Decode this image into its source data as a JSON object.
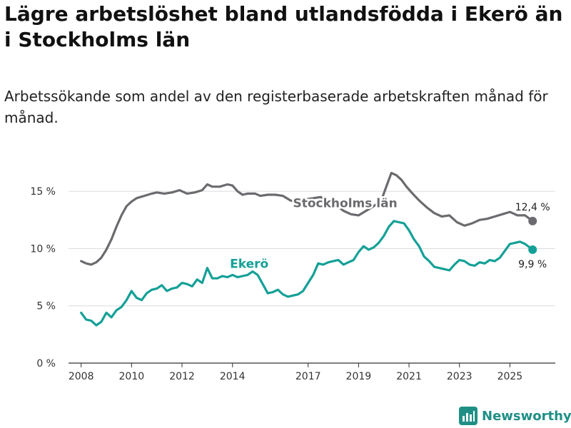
{
  "header": {
    "title": "Lägre arbetslöshet bland utlandsfödda i Ekerö än i Stockholms län",
    "subtitle": "Arbetssökande som andel av den registerbaserade arbetskraften månad för månad."
  },
  "branding": {
    "logo_text": "Newsworthy",
    "logo_icon": "bar-chart-icon",
    "color": "#1f8f86"
  },
  "chart_data": {
    "type": "line",
    "title": "Lägre arbetslöshet bland utlandsfödda i Ekerö än i Stockholms län",
    "subtitle": "Arbetssökande som andel av den registerbaserade arbetskraften månad för månad.",
    "xlabel": "",
    "ylabel": "",
    "x_ticks": [
      2008,
      2010,
      2012,
      2014,
      2017,
      2019,
      2021,
      2023,
      2025
    ],
    "y_ticks": [
      0,
      5,
      10,
      15
    ],
    "y_tick_labels": [
      "0 %",
      "5 %",
      "10 %",
      "15 %"
    ],
    "xlim": [
      2007.5,
      2026.8
    ],
    "ylim": [
      0,
      18
    ],
    "grid": true,
    "series": [
      {
        "name": "Stockholms län",
        "color": "#6b6b6f",
        "label_at": [
          2016.4,
          13.6
        ],
        "end_label": "12,4 %",
        "end_value": 12.4,
        "points": [
          [
            2008.0,
            8.9
          ],
          [
            2008.2,
            8.7
          ],
          [
            2008.4,
            8.6
          ],
          [
            2008.6,
            8.8
          ],
          [
            2008.8,
            9.2
          ],
          [
            2009.0,
            9.9
          ],
          [
            2009.2,
            10.8
          ],
          [
            2009.4,
            11.9
          ],
          [
            2009.6,
            12.9
          ],
          [
            2009.8,
            13.7
          ],
          [
            2010.0,
            14.1
          ],
          [
            2010.2,
            14.4
          ],
          [
            2010.5,
            14.6
          ],
          [
            2010.8,
            14.8
          ],
          [
            2011.0,
            14.9
          ],
          [
            2011.3,
            14.8
          ],
          [
            2011.6,
            14.9
          ],
          [
            2011.9,
            15.1
          ],
          [
            2012.2,
            14.8
          ],
          [
            2012.5,
            14.9
          ],
          [
            2012.8,
            15.1
          ],
          [
            2013.0,
            15.6
          ],
          [
            2013.2,
            15.4
          ],
          [
            2013.5,
            15.4
          ],
          [
            2013.8,
            15.6
          ],
          [
            2014.0,
            15.5
          ],
          [
            2014.2,
            15.0
          ],
          [
            2014.4,
            14.7
          ],
          [
            2014.6,
            14.8
          ],
          [
            2014.9,
            14.8
          ],
          [
            2015.1,
            14.6
          ],
          [
            2015.4,
            14.7
          ],
          [
            2015.7,
            14.7
          ],
          [
            2016.0,
            14.6
          ],
          [
            2016.3,
            14.2
          ],
          [
            2016.6,
            14.0
          ],
          [
            2016.9,
            14.3
          ],
          [
            2017.2,
            14.4
          ],
          [
            2017.5,
            14.5
          ],
          [
            2017.8,
            14.1
          ],
          [
            2018.1,
            13.8
          ],
          [
            2018.4,
            13.3
          ],
          [
            2018.7,
            13.0
          ],
          [
            2019.0,
            12.9
          ],
          [
            2019.3,
            13.3
          ],
          [
            2019.6,
            13.7
          ],
          [
            2019.9,
            14.2
          ],
          [
            2020.1,
            15.4
          ],
          [
            2020.3,
            16.6
          ],
          [
            2020.5,
            16.4
          ],
          [
            2020.7,
            16.0
          ],
          [
            2020.9,
            15.4
          ],
          [
            2021.1,
            14.9
          ],
          [
            2021.4,
            14.2
          ],
          [
            2021.7,
            13.6
          ],
          [
            2022.0,
            13.1
          ],
          [
            2022.3,
            12.8
          ],
          [
            2022.6,
            12.9
          ],
          [
            2022.9,
            12.3
          ],
          [
            2023.2,
            12.0
          ],
          [
            2023.5,
            12.2
          ],
          [
            2023.8,
            12.5
          ],
          [
            2024.1,
            12.6
          ],
          [
            2024.4,
            12.8
          ],
          [
            2024.7,
            13.0
          ],
          [
            2025.0,
            13.2
          ],
          [
            2025.3,
            12.9
          ],
          [
            2025.6,
            12.9
          ],
          [
            2025.9,
            12.4
          ]
        ]
      },
      {
        "name": "Ekerö",
        "color": "#14a097",
        "label_at": [
          2013.9,
          8.3
        ],
        "end_label": "9,9 %",
        "end_value": 9.9,
        "points": [
          [
            2008.0,
            4.4
          ],
          [
            2008.2,
            3.8
          ],
          [
            2008.4,
            3.7
          ],
          [
            2008.6,
            3.3
          ],
          [
            2008.8,
            3.6
          ],
          [
            2009.0,
            4.4
          ],
          [
            2009.2,
            4.0
          ],
          [
            2009.4,
            4.6
          ],
          [
            2009.6,
            4.9
          ],
          [
            2009.8,
            5.5
          ],
          [
            2010.0,
            6.3
          ],
          [
            2010.2,
            5.7
          ],
          [
            2010.4,
            5.5
          ],
          [
            2010.6,
            6.1
          ],
          [
            2010.8,
            6.4
          ],
          [
            2011.0,
            6.5
          ],
          [
            2011.2,
            6.8
          ],
          [
            2011.4,
            6.3
          ],
          [
            2011.6,
            6.5
          ],
          [
            2011.8,
            6.6
          ],
          [
            2012.0,
            7.0
          ],
          [
            2012.2,
            6.9
          ],
          [
            2012.4,
            6.7
          ],
          [
            2012.6,
            7.3
          ],
          [
            2012.8,
            7.0
          ],
          [
            2013.0,
            8.3
          ],
          [
            2013.2,
            7.4
          ],
          [
            2013.4,
            7.4
          ],
          [
            2013.6,
            7.6
          ],
          [
            2013.8,
            7.5
          ],
          [
            2014.0,
            7.7
          ],
          [
            2014.2,
            7.5
          ],
          [
            2014.4,
            7.6
          ],
          [
            2014.6,
            7.7
          ],
          [
            2014.8,
            8.0
          ],
          [
            2015.0,
            7.7
          ],
          [
            2015.2,
            6.9
          ],
          [
            2015.4,
            6.1
          ],
          [
            2015.6,
            6.2
          ],
          [
            2015.8,
            6.4
          ],
          [
            2016.0,
            6.0
          ],
          [
            2016.2,
            5.8
          ],
          [
            2016.4,
            5.9
          ],
          [
            2016.6,
            6.0
          ],
          [
            2016.8,
            6.3
          ],
          [
            2017.0,
            7.0
          ],
          [
            2017.2,
            7.7
          ],
          [
            2017.4,
            8.7
          ],
          [
            2017.6,
            8.6
          ],
          [
            2017.8,
            8.8
          ],
          [
            2018.0,
            8.9
          ],
          [
            2018.2,
            9.0
          ],
          [
            2018.4,
            8.6
          ],
          [
            2018.6,
            8.8
          ],
          [
            2018.8,
            9.0
          ],
          [
            2019.0,
            9.7
          ],
          [
            2019.2,
            10.2
          ],
          [
            2019.4,
            9.9
          ],
          [
            2019.6,
            10.1
          ],
          [
            2019.8,
            10.5
          ],
          [
            2020.0,
            11.1
          ],
          [
            2020.2,
            11.9
          ],
          [
            2020.4,
            12.4
          ],
          [
            2020.6,
            12.3
          ],
          [
            2020.8,
            12.2
          ],
          [
            2021.0,
            11.6
          ],
          [
            2021.2,
            10.8
          ],
          [
            2021.4,
            10.2
          ],
          [
            2021.6,
            9.3
          ],
          [
            2021.8,
            8.9
          ],
          [
            2022.0,
            8.4
          ],
          [
            2022.2,
            8.3
          ],
          [
            2022.4,
            8.2
          ],
          [
            2022.6,
            8.1
          ],
          [
            2022.8,
            8.6
          ],
          [
            2023.0,
            9.0
          ],
          [
            2023.2,
            8.9
          ],
          [
            2023.4,
            8.6
          ],
          [
            2023.6,
            8.5
          ],
          [
            2023.8,
            8.8
          ],
          [
            2024.0,
            8.7
          ],
          [
            2024.2,
            9.0
          ],
          [
            2024.4,
            8.9
          ],
          [
            2024.6,
            9.2
          ],
          [
            2024.8,
            9.8
          ],
          [
            2025.0,
            10.4
          ],
          [
            2025.2,
            10.5
          ],
          [
            2025.4,
            10.6
          ],
          [
            2025.6,
            10.4
          ],
          [
            2025.9,
            9.9
          ]
        ]
      }
    ]
  }
}
